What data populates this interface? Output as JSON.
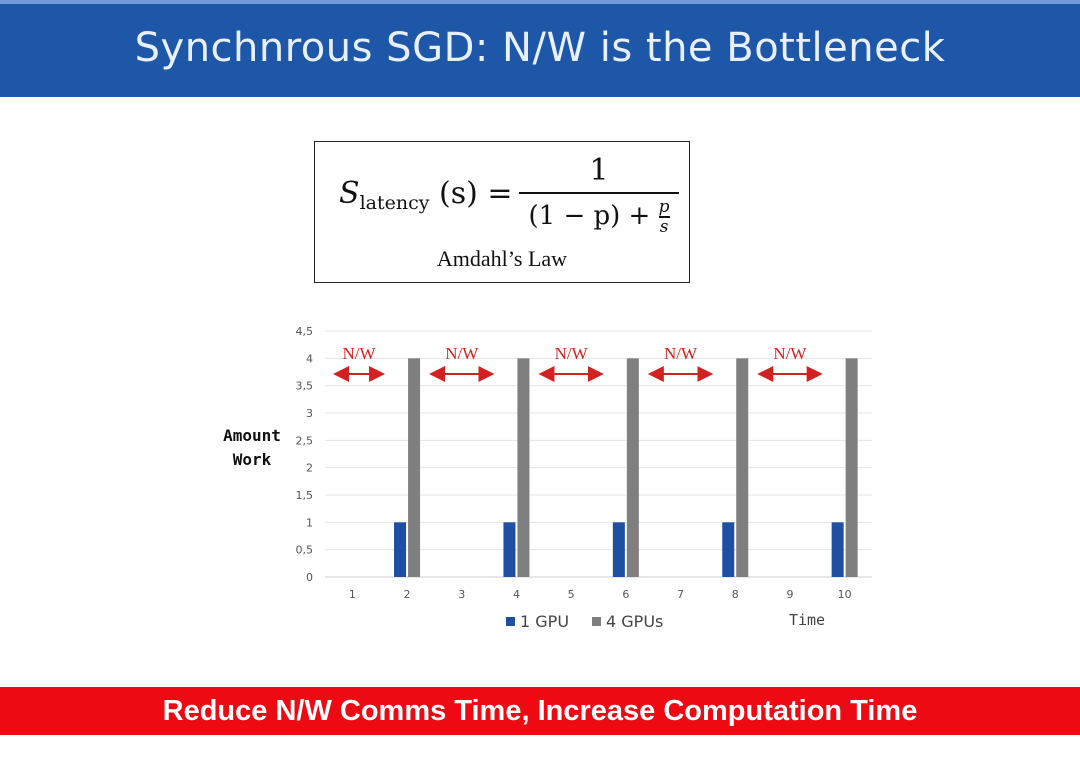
{
  "slide": {
    "title": "Synchnrous SGD: N/W is the Bottleneck",
    "footer": "Reduce N/W Comms Time, Increase Computation Time",
    "formula": {
      "S": "S",
      "subscript": "latency",
      "arg": "(s) =",
      "numerator": "1",
      "denominator": "(1 − p) +",
      "p": "p",
      "s": "s",
      "caption": "Amdahl’s Law"
    },
    "colors": {
      "title_bg": "#1e56a8",
      "footer_bg": "#ee0a12",
      "gpu1": "#1f4fa3",
      "gpu4": "#7f7f7f",
      "arrow": "#d42020"
    }
  },
  "chart_data": {
    "type": "bar",
    "categories": [
      "1",
      "2",
      "3",
      "4",
      "5",
      "6",
      "7",
      "8",
      "9",
      "10"
    ],
    "series": [
      {
        "name": "1 GPU",
        "values": [
          0,
          1,
          0,
          1,
          0,
          1,
          0,
          1,
          0,
          1
        ]
      },
      {
        "name": "4 GPUs",
        "values": [
          0,
          4,
          0,
          4,
          0,
          4,
          0,
          4,
          0,
          4
        ]
      }
    ],
    "ylim": [
      0,
      4.5
    ],
    "yticks": [
      "0",
      "0,5",
      "1",
      "1,5",
      "2",
      "2,5",
      "3",
      "3,5",
      "4",
      "4,5"
    ],
    "xlabel": "Time",
    "ylabel": "Amount Work",
    "annotations": [
      "N/W",
      "N/W",
      "N/W",
      "N/W",
      "N/W"
    ],
    "legend": "bottom",
    "grid": true
  }
}
